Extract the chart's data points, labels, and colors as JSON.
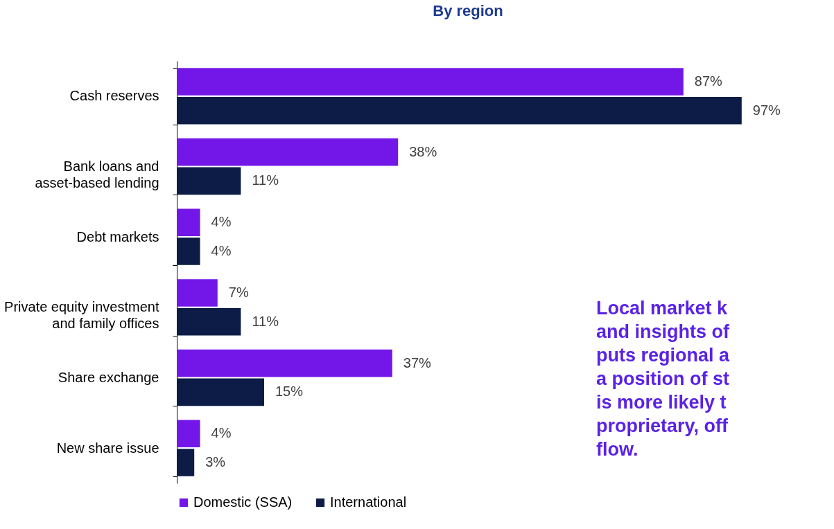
{
  "chart_data": {
    "type": "bar",
    "orientation": "horizontal",
    "title": "By region",
    "categories": [
      "Cash reserves",
      "Bank loans and\nasset-based lending",
      "Debt markets",
      "Private equity investment\nand family offices",
      "Share exchange",
      "New share issue"
    ],
    "series": [
      {
        "name": "Domestic (SSA)",
        "color": "#7317e8",
        "values": [
          87,
          38,
          4,
          7,
          37,
          4
        ],
        "value_labels": [
          "87%",
          "38%",
          "4%",
          "7%",
          "37%",
          "4%"
        ]
      },
      {
        "name": "International",
        "color": "#0c1c47",
        "values": [
          97,
          11,
          4,
          11,
          15,
          3
        ],
        "value_labels": [
          "97%",
          "11%",
          "4%",
          "11%",
          "15%",
          "3%"
        ]
      }
    ],
    "tick_labels": "y",
    "legend": "bottom",
    "grid": false,
    "annotations": [
      "Local market k\nand insights of\nputs regional a\na position of st\nis more likely t\nproprietary, off\nflow."
    ]
  }
}
